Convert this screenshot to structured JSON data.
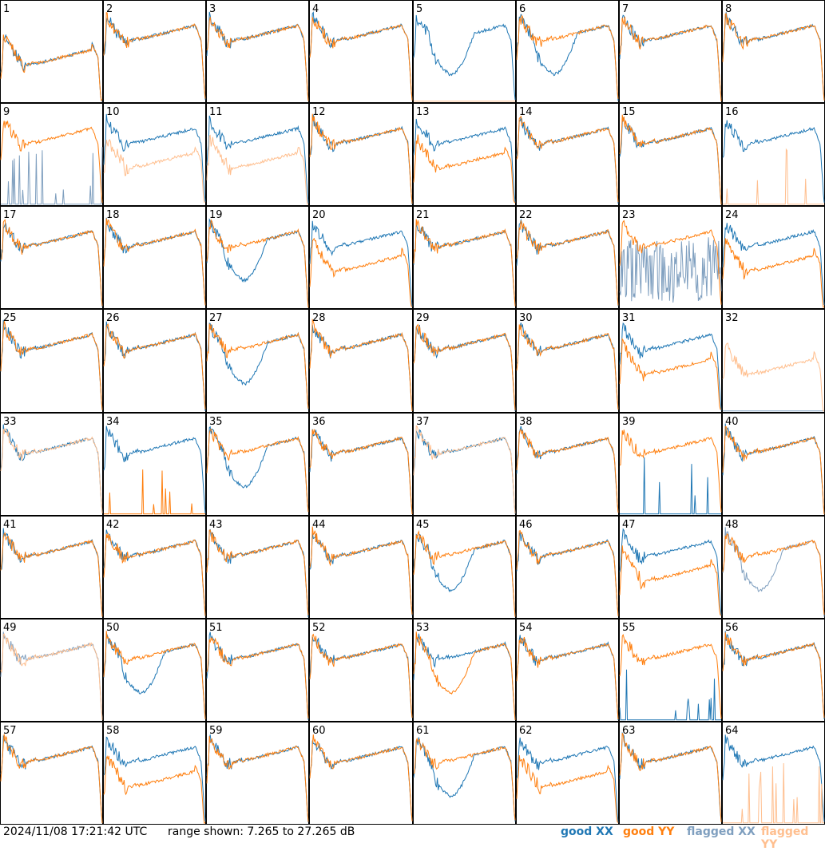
{
  "footer": {
    "timestamp": "2024/11/08 17:21:42 UTC",
    "range_text": "range shown: 7.265 to 27.265 dB",
    "legend": {
      "good_xx": "good XX",
      "good_yy": "good YY",
      "flagged_xx": "flagged XX",
      "flagged_yy": "flagged YY"
    }
  },
  "colors": {
    "good_xx": "#1f77b4",
    "good_yy": "#ff7f0e",
    "flagged_xx": "#7f9fbf",
    "flagged_yy": "#ffbf8f"
  },
  "chart_data": {
    "type": "line",
    "grid": {
      "rows": 8,
      "cols": 8
    },
    "ylim_db": [
      7.265,
      27.265
    ],
    "tiles": [
      {
        "n": 1,
        "xx": "good",
        "yy": "good",
        "xx_shape": "low",
        "yy_shape": "low"
      },
      {
        "n": 2,
        "xx": "good",
        "yy": "good",
        "xx_shape": "normal",
        "yy_shape": "normal"
      },
      {
        "n": 3,
        "xx": "good",
        "yy": "good",
        "xx_shape": "normal",
        "yy_shape": "normal"
      },
      {
        "n": 4,
        "xx": "good",
        "yy": "good",
        "xx_shape": "normal",
        "yy_shape": "normal"
      },
      {
        "n": 5,
        "xx": "good",
        "yy": "flagged",
        "xx_shape": "dip",
        "yy_shape": "flat"
      },
      {
        "n": 6,
        "xx": "good",
        "yy": "good",
        "xx_shape": "dip",
        "yy_shape": "normal"
      },
      {
        "n": 7,
        "xx": "good",
        "yy": "good",
        "xx_shape": "normal",
        "yy_shape": "normal"
      },
      {
        "n": 8,
        "xx": "good",
        "yy": "good",
        "xx_shape": "normal",
        "yy_shape": "normal"
      },
      {
        "n": 9,
        "xx": "flagged",
        "yy": "good",
        "xx_shape": "spikes",
        "yy_shape": "normal"
      },
      {
        "n": 10,
        "xx": "good",
        "yy": "flagged",
        "xx_shape": "normal",
        "yy_shape": "low"
      },
      {
        "n": 11,
        "xx": "good",
        "yy": "flagged",
        "xx_shape": "normal",
        "yy_shape": "low"
      },
      {
        "n": 12,
        "xx": "good",
        "yy": "good",
        "xx_shape": "normal",
        "yy_shape": "normal"
      },
      {
        "n": 13,
        "xx": "good",
        "yy": "good",
        "xx_shape": "normal",
        "yy_shape": "low"
      },
      {
        "n": 14,
        "xx": "good",
        "yy": "good",
        "xx_shape": "normal",
        "yy_shape": "normal"
      },
      {
        "n": 15,
        "xx": "good",
        "yy": "good",
        "xx_shape": "normal",
        "yy_shape": "normal"
      },
      {
        "n": 16,
        "xx": "good",
        "yy": "flagged",
        "xx_shape": "normal",
        "yy_shape": "spikes"
      },
      {
        "n": 17,
        "xx": "good",
        "yy": "good",
        "xx_shape": "normal",
        "yy_shape": "normal"
      },
      {
        "n": 18,
        "xx": "good",
        "yy": "good",
        "xx_shape": "normal",
        "yy_shape": "normal"
      },
      {
        "n": 19,
        "xx": "good",
        "yy": "good",
        "xx_shape": "dip",
        "yy_shape": "normal"
      },
      {
        "n": 20,
        "xx": "good",
        "yy": "good",
        "xx_shape": "normal",
        "yy_shape": "low"
      },
      {
        "n": 21,
        "xx": "good",
        "yy": "good",
        "xx_shape": "normal",
        "yy_shape": "normal"
      },
      {
        "n": 22,
        "xx": "good",
        "yy": "good",
        "xx_shape": "normal",
        "yy_shape": "normal"
      },
      {
        "n": 23,
        "xx": "flagged",
        "yy": "good",
        "xx_shape": "noise",
        "yy_shape": "normal"
      },
      {
        "n": 24,
        "xx": "good",
        "yy": "good",
        "xx_shape": "normal",
        "yy_shape": "low"
      },
      {
        "n": 25,
        "xx": "good",
        "yy": "good",
        "xx_shape": "normal",
        "yy_shape": "normal"
      },
      {
        "n": 26,
        "xx": "good",
        "yy": "good",
        "xx_shape": "normal",
        "yy_shape": "normal"
      },
      {
        "n": 27,
        "xx": "good",
        "yy": "good",
        "xx_shape": "dip",
        "yy_shape": "normal"
      },
      {
        "n": 28,
        "xx": "good",
        "yy": "good",
        "xx_shape": "normal",
        "yy_shape": "normal"
      },
      {
        "n": 29,
        "xx": "good",
        "yy": "good",
        "xx_shape": "normal",
        "yy_shape": "normal"
      },
      {
        "n": 30,
        "xx": "good",
        "yy": "good",
        "xx_shape": "normal",
        "yy_shape": "normal"
      },
      {
        "n": 31,
        "xx": "good",
        "yy": "good",
        "xx_shape": "normal",
        "yy_shape": "low"
      },
      {
        "n": 32,
        "xx": "flagged",
        "yy": "flagged",
        "xx_shape": "flat",
        "yy_shape": "low"
      },
      {
        "n": 33,
        "xx": "good",
        "yy": "flagged",
        "xx_shape": "normal",
        "yy_shape": "normal"
      },
      {
        "n": 34,
        "xx": "good",
        "yy": "good",
        "xx_shape": "normal",
        "yy_shape": "spikes"
      },
      {
        "n": 35,
        "xx": "good",
        "yy": "good",
        "xx_shape": "dip",
        "yy_shape": "normal"
      },
      {
        "n": 36,
        "xx": "good",
        "yy": "good",
        "xx_shape": "normal",
        "yy_shape": "normal"
      },
      {
        "n": 37,
        "xx": "good",
        "yy": "flagged",
        "xx_shape": "normal",
        "yy_shape": "normal"
      },
      {
        "n": 38,
        "xx": "good",
        "yy": "good",
        "xx_shape": "normal",
        "yy_shape": "normal"
      },
      {
        "n": 39,
        "xx": "good",
        "yy": "good",
        "xx_shape": "spikes",
        "yy_shape": "normal"
      },
      {
        "n": 40,
        "xx": "good",
        "yy": "good",
        "xx_shape": "normal",
        "yy_shape": "normal"
      },
      {
        "n": 41,
        "xx": "good",
        "yy": "good",
        "xx_shape": "normal",
        "yy_shape": "normal"
      },
      {
        "n": 42,
        "xx": "good",
        "yy": "good",
        "xx_shape": "normal",
        "yy_shape": "normal"
      },
      {
        "n": 43,
        "xx": "good",
        "yy": "good",
        "xx_shape": "normal",
        "yy_shape": "normal"
      },
      {
        "n": 44,
        "xx": "good",
        "yy": "good",
        "xx_shape": "normal",
        "yy_shape": "normal"
      },
      {
        "n": 45,
        "xx": "good",
        "yy": "good",
        "xx_shape": "dip",
        "yy_shape": "normal"
      },
      {
        "n": 46,
        "xx": "good",
        "yy": "good",
        "xx_shape": "normal",
        "yy_shape": "normal"
      },
      {
        "n": 47,
        "xx": "good",
        "yy": "good",
        "xx_shape": "normal",
        "yy_shape": "low"
      },
      {
        "n": 48,
        "xx": "flagged",
        "yy": "good",
        "xx_shape": "dip",
        "yy_shape": "normal"
      },
      {
        "n": 49,
        "xx": "flagged",
        "yy": "flagged",
        "xx_shape": "normal",
        "yy_shape": "normal"
      },
      {
        "n": 50,
        "xx": "good",
        "yy": "good",
        "xx_shape": "dip",
        "yy_shape": "normal"
      },
      {
        "n": 51,
        "xx": "good",
        "yy": "good",
        "xx_shape": "normal",
        "yy_shape": "normal"
      },
      {
        "n": 52,
        "xx": "good",
        "yy": "good",
        "xx_shape": "normal",
        "yy_shape": "normal"
      },
      {
        "n": 53,
        "xx": "good",
        "yy": "good",
        "xx_shape": "normal",
        "yy_shape": "dip"
      },
      {
        "n": 54,
        "xx": "good",
        "yy": "good",
        "xx_shape": "normal",
        "yy_shape": "normal"
      },
      {
        "n": 55,
        "xx": "good",
        "yy": "good",
        "xx_shape": "spikes",
        "yy_shape": "normal"
      },
      {
        "n": 56,
        "xx": "good",
        "yy": "good",
        "xx_shape": "normal",
        "yy_shape": "normal"
      },
      {
        "n": 57,
        "xx": "good",
        "yy": "good",
        "xx_shape": "normal",
        "yy_shape": "normal"
      },
      {
        "n": 58,
        "xx": "good",
        "yy": "good",
        "xx_shape": "normal",
        "yy_shape": "low"
      },
      {
        "n": 59,
        "xx": "good",
        "yy": "good",
        "xx_shape": "normal",
        "yy_shape": "normal"
      },
      {
        "n": 60,
        "xx": "good",
        "yy": "good",
        "xx_shape": "normal",
        "yy_shape": "normal"
      },
      {
        "n": 61,
        "xx": "good",
        "yy": "good",
        "xx_shape": "dip",
        "yy_shape": "normal"
      },
      {
        "n": 62,
        "xx": "good",
        "yy": "good",
        "xx_shape": "normal",
        "yy_shape": "low"
      },
      {
        "n": 63,
        "xx": "good",
        "yy": "good",
        "xx_shape": "normal",
        "yy_shape": "normal"
      },
      {
        "n": 64,
        "xx": "good",
        "yy": "flagged",
        "xx_shape": "normal",
        "yy_shape": "spikes"
      }
    ]
  }
}
